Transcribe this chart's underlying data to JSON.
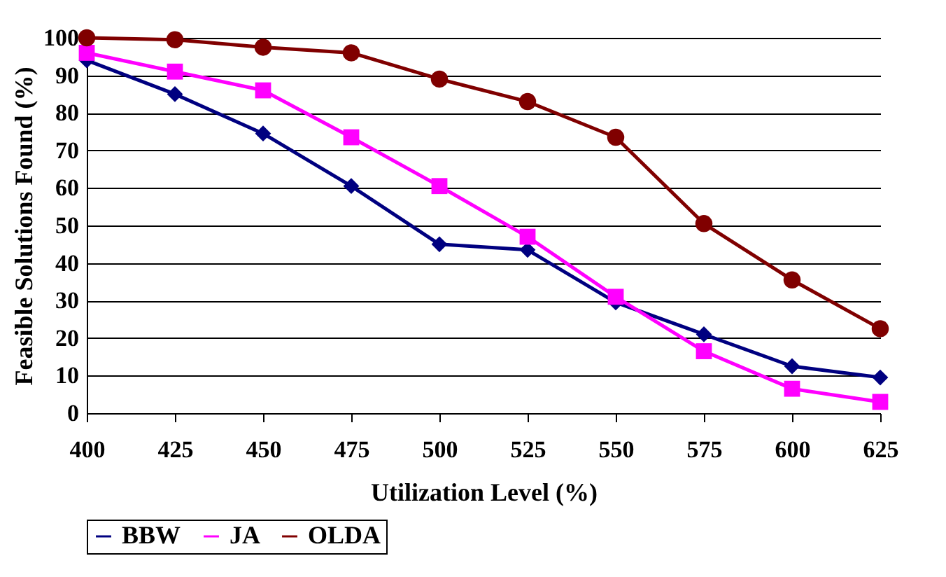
{
  "chart_data": {
    "type": "line",
    "xlabel": "Utilization Level (%)",
    "ylabel": "Feasible Solutions Found (%)",
    "categories": [
      "400",
      "425",
      "450",
      "475",
      "500",
      "525",
      "550",
      "575",
      "600",
      "625"
    ],
    "series": [
      {
        "name": "BBW",
        "color": "#000080",
        "marker": "diamond",
        "values": [
          94,
          85,
          74.5,
          60.5,
          45,
          43.5,
          29.5,
          21,
          12.5,
          9.5
        ]
      },
      {
        "name": "JA",
        "color": "#ff00ff",
        "marker": "square",
        "values": [
          96,
          91,
          86,
          73.5,
          60.5,
          47,
          31,
          16.5,
          6.5,
          3
        ]
      },
      {
        "name": "OLDA",
        "color": "#800000",
        "marker": "circle",
        "values": [
          100,
          99.5,
          97.5,
          96,
          89,
          83,
          73.5,
          50.5,
          35.5,
          22.5
        ]
      }
    ],
    "ylim": [
      0,
      100
    ],
    "yticks": [
      0,
      10,
      20,
      30,
      40,
      50,
      60,
      70,
      80,
      90,
      100
    ],
    "grid": "y",
    "legend": "bottom",
    "line_style": "solid"
  }
}
